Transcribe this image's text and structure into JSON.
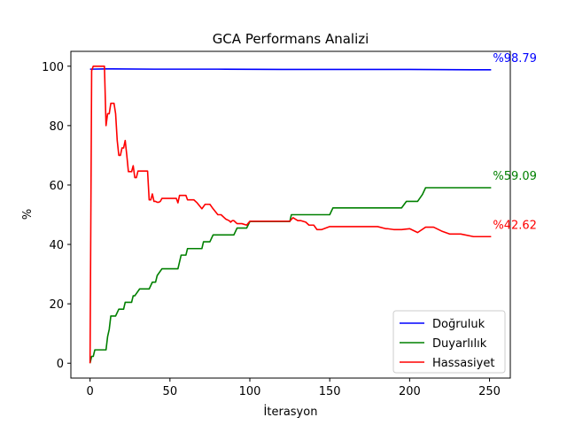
{
  "chart_data": {
    "type": "line",
    "title": "GCA Performans Analizi",
    "xlabel": "İterasyon",
    "ylabel": "%",
    "xlim": [
      -12,
      263
    ],
    "ylim": [
      -5,
      105
    ],
    "xticks": [
      0,
      50,
      100,
      150,
      200,
      250
    ],
    "yticks": [
      0,
      20,
      40,
      60,
      80,
      100
    ],
    "grid": false,
    "legend_position": "lower right",
    "series": [
      {
        "name": "Doğruluk",
        "color": "#0000ff",
        "end_label": "%98.79",
        "x": [
          0,
          1,
          10,
          40,
          80,
          120,
          160,
          200,
          240,
          251
        ],
        "y": [
          99.0,
          99.0,
          99.1,
          99.0,
          99.0,
          98.9,
          98.9,
          98.9,
          98.8,
          98.79
        ]
      },
      {
        "name": "Duyarlılık",
        "color": "#008000",
        "end_label": "%59.09",
        "x": [
          0,
          1,
          2,
          3,
          5,
          10,
          11,
          12,
          13,
          16,
          18,
          21,
          22,
          26,
          27,
          28,
          31,
          37,
          39,
          41,
          42,
          45,
          50,
          55,
          57,
          60,
          61,
          65,
          70,
          71,
          75,
          77,
          85,
          90,
          92,
          98,
          100,
          125,
          126,
          150,
          152,
          155,
          185,
          195,
          198,
          205,
          208,
          210,
          251
        ],
        "y": [
          0,
          2.3,
          2.3,
          4.5,
          4.5,
          4.5,
          9,
          11.4,
          15.9,
          15.9,
          18.2,
          18.2,
          20.5,
          20.5,
          22.7,
          22.7,
          25,
          25,
          27.3,
          27.3,
          29.5,
          31.8,
          31.8,
          31.8,
          36.4,
          36.4,
          38.6,
          38.6,
          38.6,
          40.9,
          40.9,
          43.2,
          43.2,
          43.2,
          45.5,
          45.5,
          47.7,
          47.7,
          50,
          50,
          52.3,
          52.3,
          52.3,
          52.3,
          54.5,
          54.5,
          56.8,
          59.09,
          59.09
        ]
      },
      {
        "name": "Hassasiyet",
        "color": "#ff0000",
        "end_label": "%42.62",
        "x": [
          0,
          1,
          2,
          9,
          10,
          11,
          12,
          13,
          14,
          15,
          16,
          17,
          18,
          19,
          20,
          21,
          22,
          23,
          24,
          25,
          26,
          27,
          28,
          29,
          30,
          31,
          32,
          33,
          34,
          35,
          36,
          37,
          38,
          39,
          40,
          41,
          42,
          43,
          44,
          45,
          46,
          47,
          48,
          50,
          52,
          54,
          55,
          56,
          58,
          59,
          60,
          61,
          62,
          63,
          64,
          65,
          67,
          70,
          72,
          75,
          77,
          80,
          82,
          85,
          87,
          88,
          89,
          90,
          91,
          92,
          95,
          98,
          100,
          125,
          127,
          130,
          132,
          135,
          137,
          140,
          142,
          145,
          150,
          155,
          160,
          170,
          180,
          185,
          186,
          190,
          195,
          200,
          205,
          210,
          215,
          220,
          225,
          232,
          240,
          245,
          251
        ],
        "y": [
          0,
          98.5,
          100,
          100,
          80,
          84,
          84,
          87.5,
          87.5,
          87.5,
          84,
          75,
          70,
          70,
          72.5,
          72.5,
          75,
          70,
          64.5,
          64.5,
          64.5,
          66.5,
          62.5,
          62.5,
          64.7,
          64.7,
          64.7,
          64.7,
          64.7,
          64.7,
          64.7,
          55,
          55,
          57,
          54.5,
          54.5,
          54.2,
          54.2,
          54.5,
          55.5,
          55.5,
          55.5,
          55.5,
          55.5,
          55.5,
          55.5,
          54,
          56.5,
          56.5,
          56.5,
          56.5,
          55,
          55,
          55,
          55,
          55,
          54,
          52,
          53.5,
          53.5,
          52,
          50,
          50,
          48.5,
          48,
          47.5,
          48,
          48,
          47.5,
          47,
          47,
          46.5,
          47.8,
          47.8,
          49,
          48,
          48,
          47.5,
          46.5,
          46.5,
          45,
          45,
          46,
          46,
          46,
          46,
          46,
          45.3,
          45.3,
          45,
          45,
          45.3,
          44,
          45.8,
          45.8,
          44.5,
          43.5,
          43.5,
          42.62,
          42.62,
          42.62
        ]
      }
    ]
  }
}
